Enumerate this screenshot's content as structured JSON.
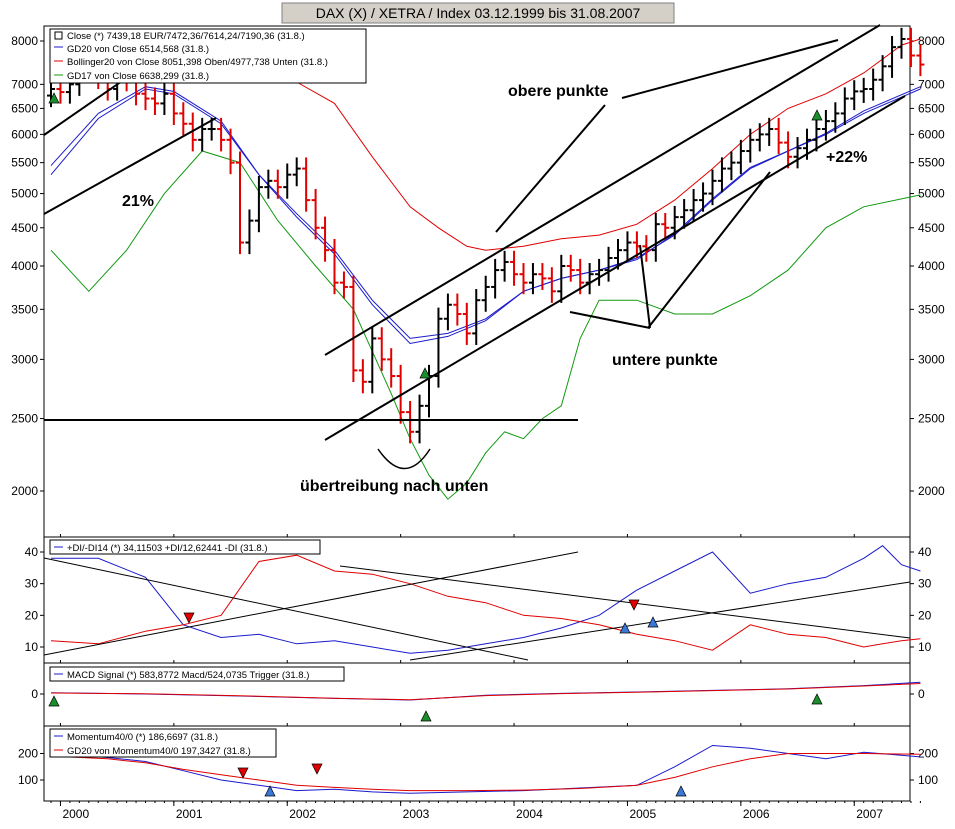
{
  "title": "DAX (X) / XETRA / Index 03.12.1999 bis 31.08.2007",
  "colors": {
    "black": "#000000",
    "red": "#e00000",
    "blue": "#1a1acc",
    "green": "#119911",
    "panel_bg": "#ffffff",
    "frame": "#000000",
    "title_bg": "#d4d0c8",
    "signal_green": "#1b8f2b"
  },
  "x_axis_years": [
    "2000",
    "2001",
    "2002",
    "2003",
    "2004",
    "2005",
    "2006",
    "2007"
  ],
  "main_panel": {
    "legend": [
      "Close (*) 7439,18 EUR/7472,36/7614,24/7190,36 (31.8.)",
      "GD20 von Close 6514,568 (31.8.)",
      "Bollinger20 von Close 8051,398 Oben/4977,738 Unten (31.8.)",
      "GD17 von Close 6638,299 (31.8.)"
    ],
    "y_ticks": [
      "8000",
      "7000",
      "6500",
      "6000",
      "5500",
      "5000",
      "4500",
      "4000",
      "3500",
      "3000",
      "2500",
      "2000"
    ],
    "annotations": {
      "obere": "obere punkte",
      "untere": "untere punkte",
      "uebertreibung": "übertreibung nach unten",
      "pct21": "21%",
      "pct22": "+22%"
    },
    "scale": "log"
  },
  "dmi_panel": {
    "legend": "+DI/-DI14 (*) 34,11503 +DI/12,62441 -DI (31.8.)",
    "y_ticks": [
      "40",
      "30",
      "20",
      "10"
    ]
  },
  "macd_panel": {
    "legend": "MACD Signal (*) 583,8772 Macd/524,0735 Trigger (31.8.)",
    "y_ticks": [
      "0"
    ]
  },
  "momentum_panel": {
    "legend": [
      "Momentum40/0 (*) 186,6697 (31.8.)",
      "GD20 von Momentum40/0 197,3427 (31.8.)"
    ],
    "y_ticks": [
      "200",
      "100"
    ]
  },
  "chart_data": [
    {
      "type": "line",
      "title": "DAX (X) / XETRA / Index 03.12.1999 bis 31.08.2007",
      "x_unit": "month index (0 = Dec 1999, 92 = Aug 2007)",
      "ylim": [
        1850,
        8300
      ],
      "y_scale": "log",
      "close_color_rule": "black bar = up month, red bar = down month",
      "series": [
        {
          "name": "Close (*)",
          "x": [
            0,
            1,
            2,
            3,
            4,
            5,
            6,
            7,
            8,
            9,
            10,
            11,
            12,
            13,
            14,
            15,
            16,
            17,
            18,
            19,
            20,
            21,
            22,
            23,
            24,
            25,
            26,
            27,
            28,
            29,
            30,
            31,
            32,
            33,
            34,
            35,
            36,
            37,
            38,
            39,
            40,
            41,
            42,
            43,
            44,
            45,
            46,
            47,
            48,
            49,
            50,
            51,
            52,
            53,
            54,
            55,
            56,
            57,
            58,
            59,
            60,
            61,
            62,
            63,
            64,
            65,
            66,
            67,
            68,
            69,
            70,
            71,
            72,
            73,
            74,
            75,
            76,
            77,
            78,
            79,
            80,
            81,
            82,
            83,
            84,
            85,
            86,
            87,
            88,
            89,
            90,
            91,
            92
          ],
          "values": [
            6900,
            6835,
            7000,
            7600,
            7400,
            7150,
            6900,
            7190,
            7100,
            6800,
            6700,
            6600,
            6800,
            6400,
            6200,
            5900,
            6100,
            6100,
            5900,
            5500,
            4300,
            4600,
            5100,
            5200,
            5100,
            5300,
            5400,
            4900,
            4500,
            4200,
            3800,
            3750,
            2900,
            2800,
            3200,
            3000,
            2850,
            2550,
            2400,
            2600,
            2850,
            3400,
            3550,
            3450,
            3250,
            3600,
            3750,
            3950,
            4050,
            3900,
            3800,
            3900,
            3850,
            3700,
            4000,
            3950,
            3800,
            3900,
            3950,
            4100,
            4200,
            4300,
            4250,
            4200,
            4550,
            4500,
            4650,
            4750,
            4900,
            5000,
            5200,
            5400,
            5500,
            5700,
            5900,
            6000,
            6100,
            5850,
            5600,
            5750,
            5900,
            6100,
            6250,
            6400,
            6700,
            6850,
            6900,
            7100,
            7400,
            7850,
            8050,
            7650,
            7440
          ]
        },
        {
          "name": "GD20 von Close"
        },
        {
          "name": "Bollinger20 von Close"
        },
        {
          "name": "GD17 von Close"
        }
      ]
    },
    {
      "type": "line",
      "title": "+DI/-DI14",
      "ylim": [
        5,
        45
      ],
      "series": [
        {
          "name": "+DI",
          "x": [
            0,
            5,
            10,
            14,
            18,
            22,
            26,
            30,
            34,
            38,
            42,
            46,
            50,
            54,
            58,
            62,
            66,
            70,
            74,
            78,
            82,
            86,
            88,
            90,
            92
          ],
          "values": [
            38,
            38,
            32,
            17,
            13,
            14,
            11,
            12,
            10,
            8,
            9,
            11,
            13,
            16,
            20,
            28,
            34,
            40,
            27,
            30,
            32,
            38,
            42,
            36,
            34
          ]
        },
        {
          "name": "-DI",
          "x": [
            0,
            5,
            10,
            14,
            18,
            22,
            26,
            30,
            34,
            38,
            42,
            46,
            50,
            54,
            58,
            62,
            66,
            70,
            74,
            78,
            82,
            86,
            88,
            90,
            92
          ],
          "values": [
            12,
            11,
            15,
            17,
            20,
            37,
            39,
            34,
            33,
            30,
            26,
            24,
            20,
            19,
            17,
            14,
            12,
            9,
            17,
            14,
            13,
            10,
            11,
            12,
            12.6
          ]
        }
      ]
    },
    {
      "type": "line",
      "title": "MACD Signal",
      "series": [
        {
          "name": "Macd",
          "x": [
            0,
            10,
            20,
            30,
            38,
            46,
            54,
            62,
            70,
            78,
            86,
            92
          ],
          "values": [
            60,
            0,
            -100,
            -220,
            -300,
            -60,
            30,
            100,
            180,
            260,
            420,
            584
          ]
        },
        {
          "name": "Trigger",
          "x": [
            0,
            10,
            20,
            30,
            38,
            46,
            54,
            62,
            70,
            78,
            86,
            92
          ],
          "values": [
            50,
            10,
            -90,
            -210,
            -290,
            -80,
            20,
            90,
            170,
            250,
            400,
            524
          ]
        }
      ]
    },
    {
      "type": "line",
      "title": "Momentum40/0",
      "series": [
        {
          "name": "Momentum40/0",
          "x": [
            0,
            6,
            10,
            14,
            18,
            22,
            26,
            30,
            34,
            38,
            44,
            50,
            56,
            62,
            66,
            70,
            74,
            78,
            82,
            86,
            92
          ],
          "values": [
            200,
            185,
            170,
            135,
            100,
            80,
            60,
            65,
            55,
            50,
            55,
            60,
            70,
            80,
            150,
            230,
            220,
            200,
            180,
            205,
            187
          ]
        },
        {
          "name": "GD20 von Momentum40/0",
          "x": [
            0,
            6,
            10,
            14,
            18,
            22,
            26,
            30,
            34,
            38,
            44,
            50,
            56,
            62,
            66,
            70,
            74,
            78,
            82,
            86,
            92
          ],
          "values": [
            190,
            180,
            165,
            140,
            120,
            100,
            80,
            72,
            65,
            60,
            60,
            62,
            68,
            80,
            110,
            150,
            180,
            200,
            200,
            200,
            197
          ]
        }
      ]
    }
  ]
}
